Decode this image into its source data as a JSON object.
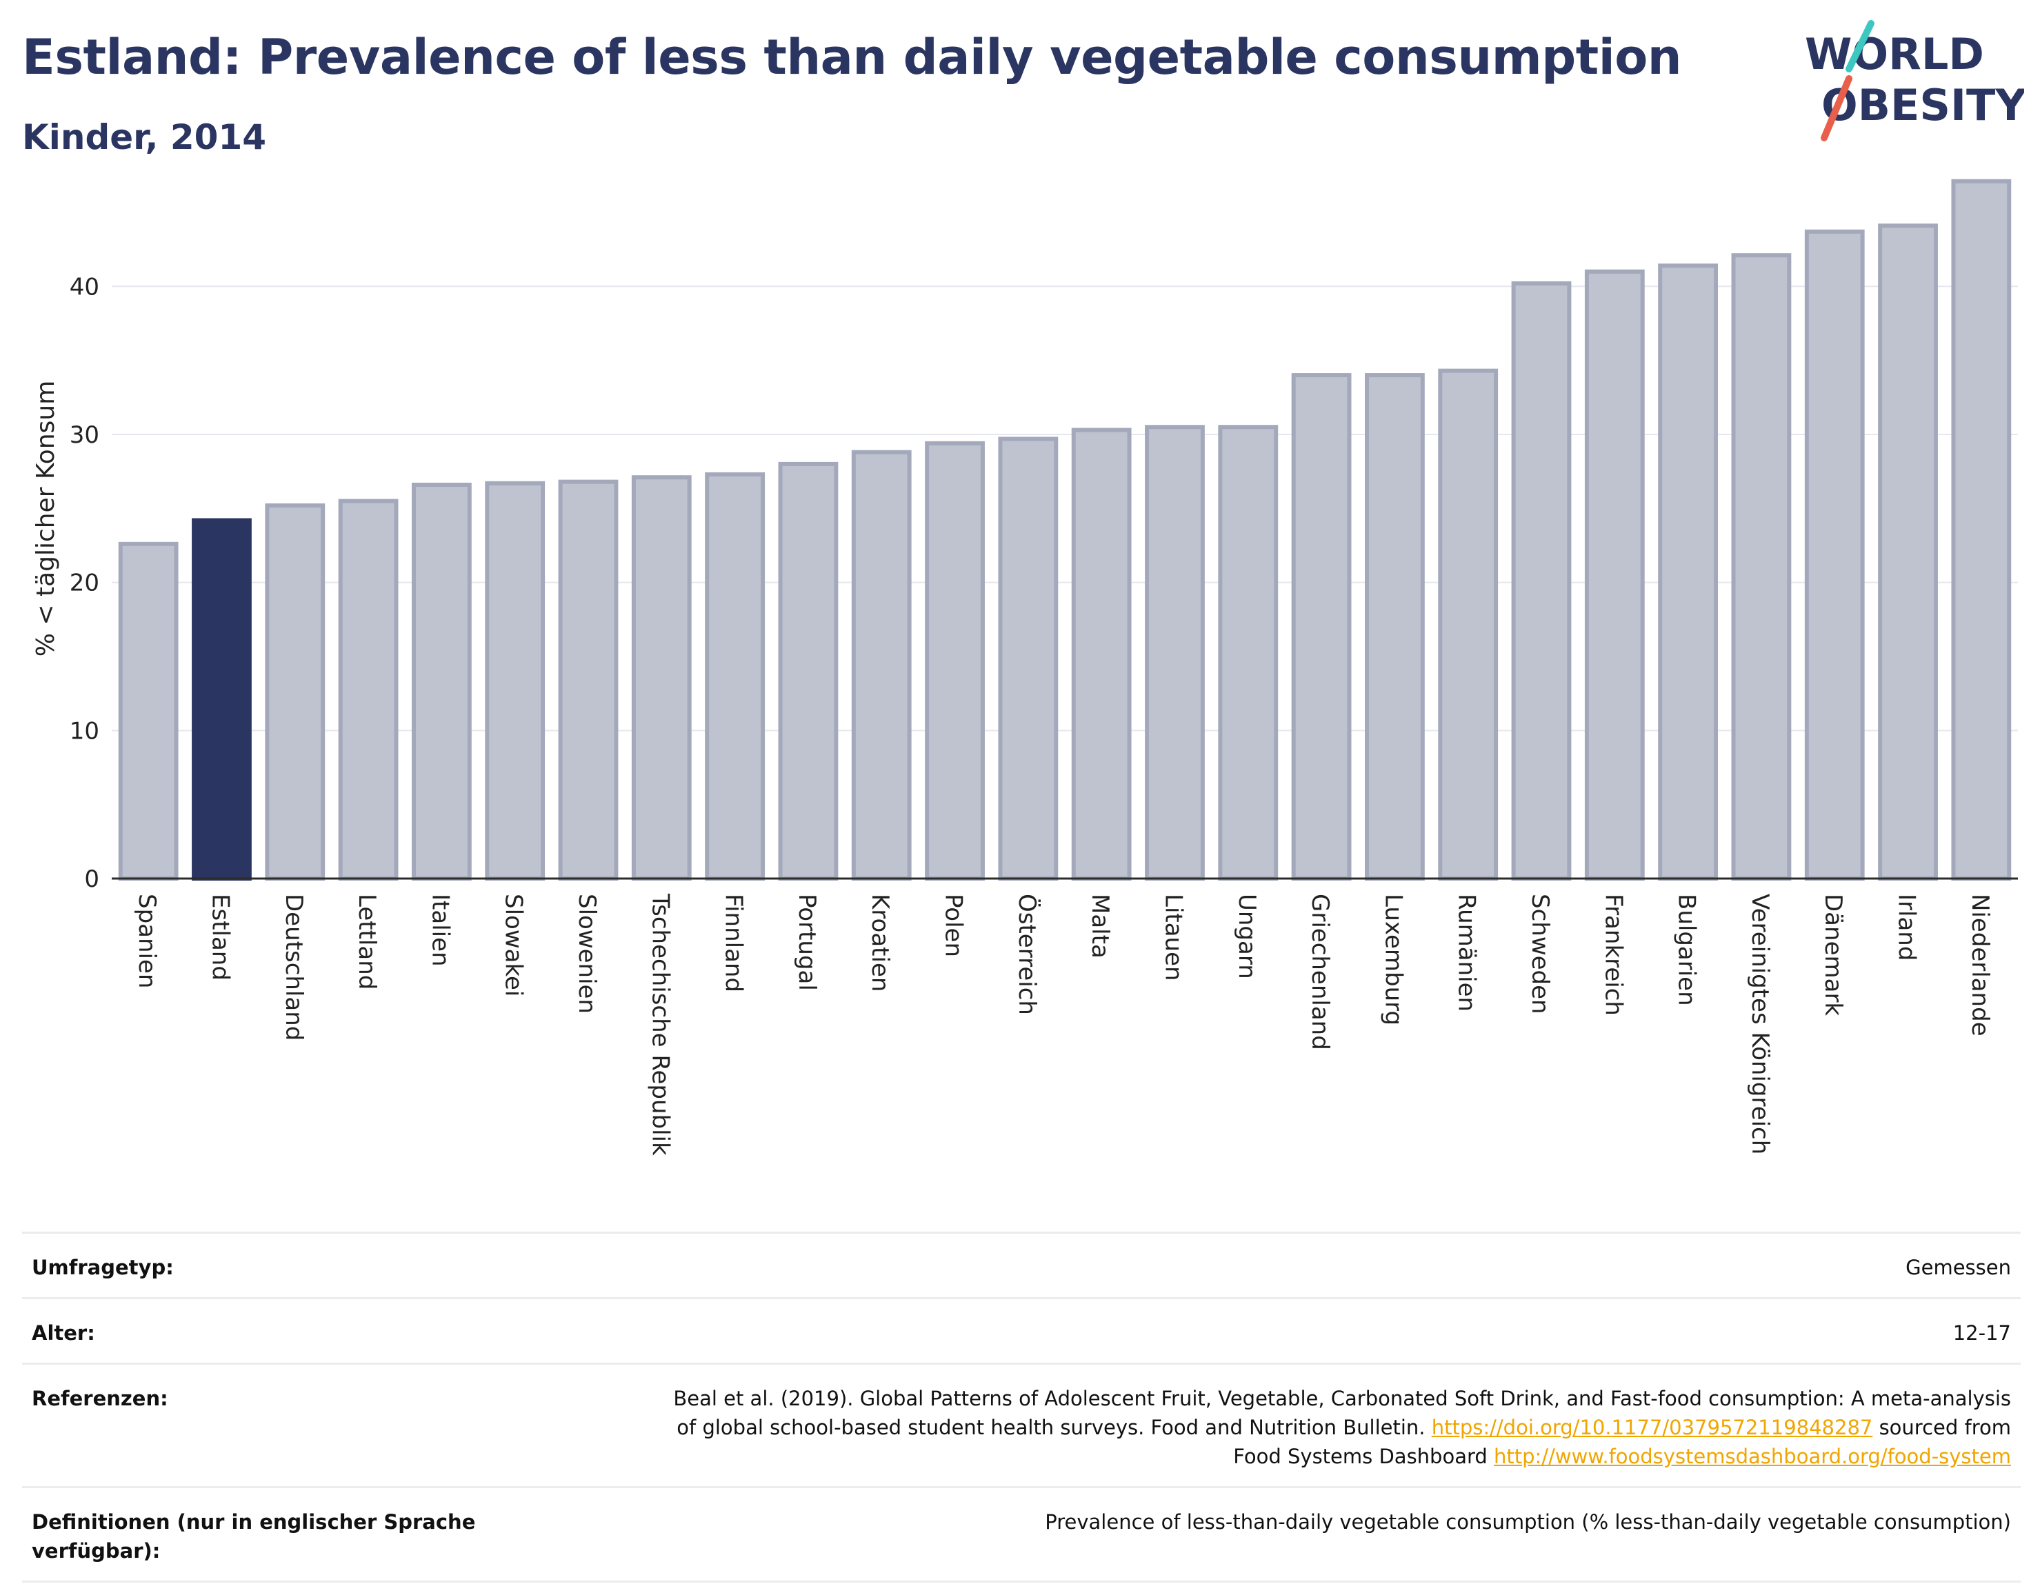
{
  "header": {
    "title": "Estland: Prevalence of less than daily vegetable consumption",
    "subtitle": "Kinder, 2014"
  },
  "logo": {
    "line1": "WORLD",
    "line2": "OBESITY",
    "accent_colors": [
      "#3cc8c0",
      "#e8604c"
    ]
  },
  "chart_data": {
    "type": "bar",
    "title": "Estland: Prevalence of less than daily vegetable consumption",
    "subtitle": "Kinder, 2014",
    "ylabel": "% < täglicher Konsum",
    "xlabel": "",
    "ylim": [
      0,
      47
    ],
    "yticks": [
      0,
      10,
      20,
      30,
      40
    ],
    "grid": true,
    "highlight": "Estland",
    "colors": {
      "default_fill": "#bfc3d0",
      "default_stroke": "#a3a8bb",
      "highlight_fill": "#2b3561"
    },
    "categories": [
      "Spanien",
      "Estland",
      "Deutschland",
      "Lettland",
      "Italien",
      "Slowakei",
      "Slowenien",
      "Tschechische Republik",
      "Finnland",
      "Portugal",
      "Kroatien",
      "Polen",
      "Österreich",
      "Malta",
      "Litauen",
      "Ungarn",
      "Griechenland",
      "Luxemburg",
      "Rumänien",
      "Schweden",
      "Frankreich",
      "Bulgarien",
      "Vereinigtes Königreich",
      "Dänemark",
      "Irland",
      "Niederlande"
    ],
    "values": [
      22.6,
      24.2,
      25.2,
      25.5,
      26.6,
      26.7,
      26.8,
      27.1,
      27.3,
      28.0,
      28.8,
      29.4,
      29.7,
      30.3,
      30.5,
      30.5,
      34.0,
      34.0,
      34.3,
      40.2,
      41.0,
      41.4,
      42.1,
      43.7,
      44.1,
      47.1
    ]
  },
  "info_table": [
    {
      "key": "Umfragetyp:",
      "value": "Gemessen"
    },
    {
      "key": "Alter:",
      "value": "12-17"
    },
    {
      "key": "Referenzen:",
      "value_line1": "Beal et al. (2019). Global Patterns of Adolescent Fruit, Vegetable, Carbonated Soft Drink, and Fast-food consumption: A meta-analysis",
      "value_line2a": "of global school-based student health surveys. Food and Nutrition Bulletin.",
      "link1": "https://doi.org/10.1177/0379572119848287",
      "value_line2b": "sourced from",
      "value_line3a": "Food Systems Dashboard",
      "link2": "http://www.foodsystemsdashboard.org/food-system"
    },
    {
      "key_line1": "Definitionen (nur in englischer Sprache",
      "key_line2": "verfügbar):",
      "value": "Prevalence of less-than-daily vegetable consumption (% less-than-daily vegetable consumption)"
    }
  ]
}
